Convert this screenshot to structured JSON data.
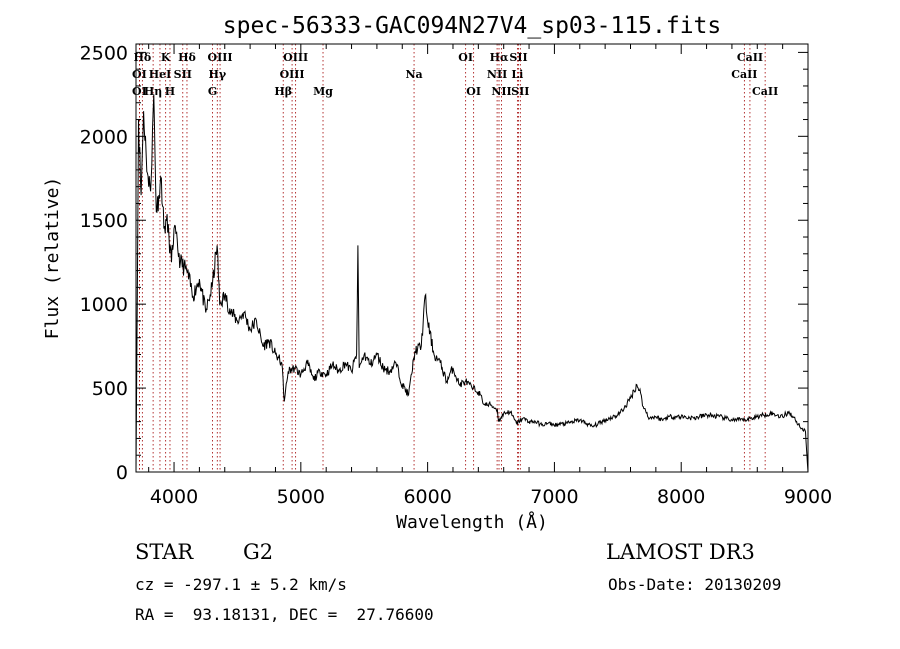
{
  "chart_data": {
    "type": "line",
    "title": "spec-56333-GAC094N27V4_sp03-115.fits",
    "xlabel": "Wavelength (Å)",
    "ylabel": "Flux (relative)",
    "xlim": [
      3700,
      9000
    ],
    "ylim": [
      0,
      2550
    ],
    "x_ticks": [
      4000,
      5000,
      6000,
      7000,
      8000,
      9000
    ],
    "y_ticks": [
      0,
      500,
      1000,
      1500,
      2000,
      2500
    ],
    "series": [
      {
        "name": "spectrum",
        "x": [
          3700,
          3720,
          3740,
          3760,
          3780,
          3800,
          3820,
          3840,
          3860,
          3880,
          3900,
          3920,
          3940,
          3960,
          3980,
          4000,
          4050,
          4100,
          4150,
          4200,
          4250,
          4300,
          4340,
          4360,
          4400,
          4450,
          4500,
          4550,
          4600,
          4650,
          4700,
          4750,
          4800,
          4850,
          4870,
          4900,
          4950,
          5000,
          5050,
          5100,
          5150,
          5200,
          5250,
          5300,
          5350,
          5400,
          5440,
          5450,
          5460,
          5500,
          5550,
          5600,
          5650,
          5700,
          5750,
          5800,
          5850,
          5900,
          5950,
          5980,
          6000,
          6050,
          6100,
          6150,
          6200,
          6250,
          6300,
          6350,
          6400,
          6450,
          6500,
          6550,
          6560,
          6600,
          6650,
          6700,
          6750,
          6800,
          6850,
          6900,
          6950,
          7000,
          7100,
          7200,
          7300,
          7400,
          7500,
          7550,
          7600,
          7650,
          7680,
          7700,
          7750,
          7800,
          7850,
          7900,
          8000,
          8100,
          8200,
          8300,
          8400,
          8500,
          8600,
          8700,
          8800,
          8850,
          8900,
          8950,
          8980,
          9000
        ],
        "values": [
          0,
          2100,
          1650,
          2150,
          1900,
          1700,
          1750,
          2250,
          1550,
          1650,
          1750,
          1450,
          1500,
          1400,
          1250,
          1450,
          1250,
          1200,
          1050,
          1150,
          950,
          1100,
          1350,
          1000,
          1050,
          950,
          900,
          950,
          850,
          900,
          750,
          780,
          700,
          650,
          420,
          600,
          620,
          580,
          650,
          550,
          600,
          580,
          640,
          600,
          650,
          600,
          700,
          1350,
          620,
          700,
          640,
          700,
          620,
          600,
          650,
          520,
          460,
          720,
          750,
          1050,
          900,
          700,
          650,
          540,
          620,
          520,
          540,
          500,
          480,
          400,
          400,
          370,
          300,
          350,
          360,
          290,
          320,
          300,
          300,
          280,
          290,
          280,
          290,
          310,
          270,
          310,
          340,
          380,
          440,
          520,
          470,
          390,
          320,
          330,
          310,
          330,
          330,
          320,
          340,
          330,
          310,
          310,
          330,
          350,
          330,
          360,
          310,
          260,
          240,
          0
        ]
      }
    ],
    "line_markers": [
      {
        "label": "Hδ",
        "x": 3750,
        "row": 0
      },
      {
        "label": "K",
        "x": 3934,
        "row": 0
      },
      {
        "label": "Hδ",
        "x": 4102,
        "row": 0
      },
      {
        "label": "OIII",
        "x": 4363,
        "row": 0
      },
      {
        "label": "OIII",
        "x": 4959,
        "row": 0
      },
      {
        "label": "OI",
        "x": 6300,
        "row": 0
      },
      {
        "label": "Hα",
        "x": 6563,
        "row": 0
      },
      {
        "label": "SII",
        "x": 6717,
        "row": 0
      },
      {
        "label": "CaII",
        "x": 8542,
        "row": 0
      },
      {
        "label": "OI",
        "x": 3727,
        "row": 1
      },
      {
        "label": "HeI",
        "x": 3889,
        "row": 1
      },
      {
        "label": "SII",
        "x": 4069,
        "row": 1
      },
      {
        "label": "Hγ",
        "x": 4341,
        "row": 1
      },
      {
        "label": "OIII",
        "x": 4931,
        "row": 1
      },
      {
        "label": "Na",
        "x": 5893,
        "row": 1
      },
      {
        "label": "NII",
        "x": 6548,
        "row": 1
      },
      {
        "label": "Li",
        "x": 6708,
        "row": 1
      },
      {
        "label": "CaII",
        "x": 8498,
        "row": 1
      },
      {
        "label": "OI",
        "x": 3727,
        "row": 2
      },
      {
        "label": "Hη",
        "x": 3835,
        "row": 2
      },
      {
        "label": "H",
        "x": 3968,
        "row": 2
      },
      {
        "label": "G",
        "x": 4304,
        "row": 2
      },
      {
        "label": "Hβ",
        "x": 4861,
        "row": 2
      },
      {
        "label": "Mg",
        "x": 5175,
        "row": 2
      },
      {
        "label": "OI",
        "x": 6363,
        "row": 2
      },
      {
        "label": "NII",
        "x": 6583,
        "row": 2
      },
      {
        "label": "SII",
        "x": 6731,
        "row": 2
      },
      {
        "label": "CaII",
        "x": 8662,
        "row": 2
      }
    ],
    "marker_color": "#a00000"
  },
  "info": {
    "object_class": "STAR",
    "subclass": "G2",
    "survey": "LAMOST DR3",
    "redshift": "cz = -297.1 ± 5.2 km/s",
    "obs_date": "Obs-Date: 20130209",
    "coords": "RA =  93.18131, DEC =  27.76600"
  }
}
